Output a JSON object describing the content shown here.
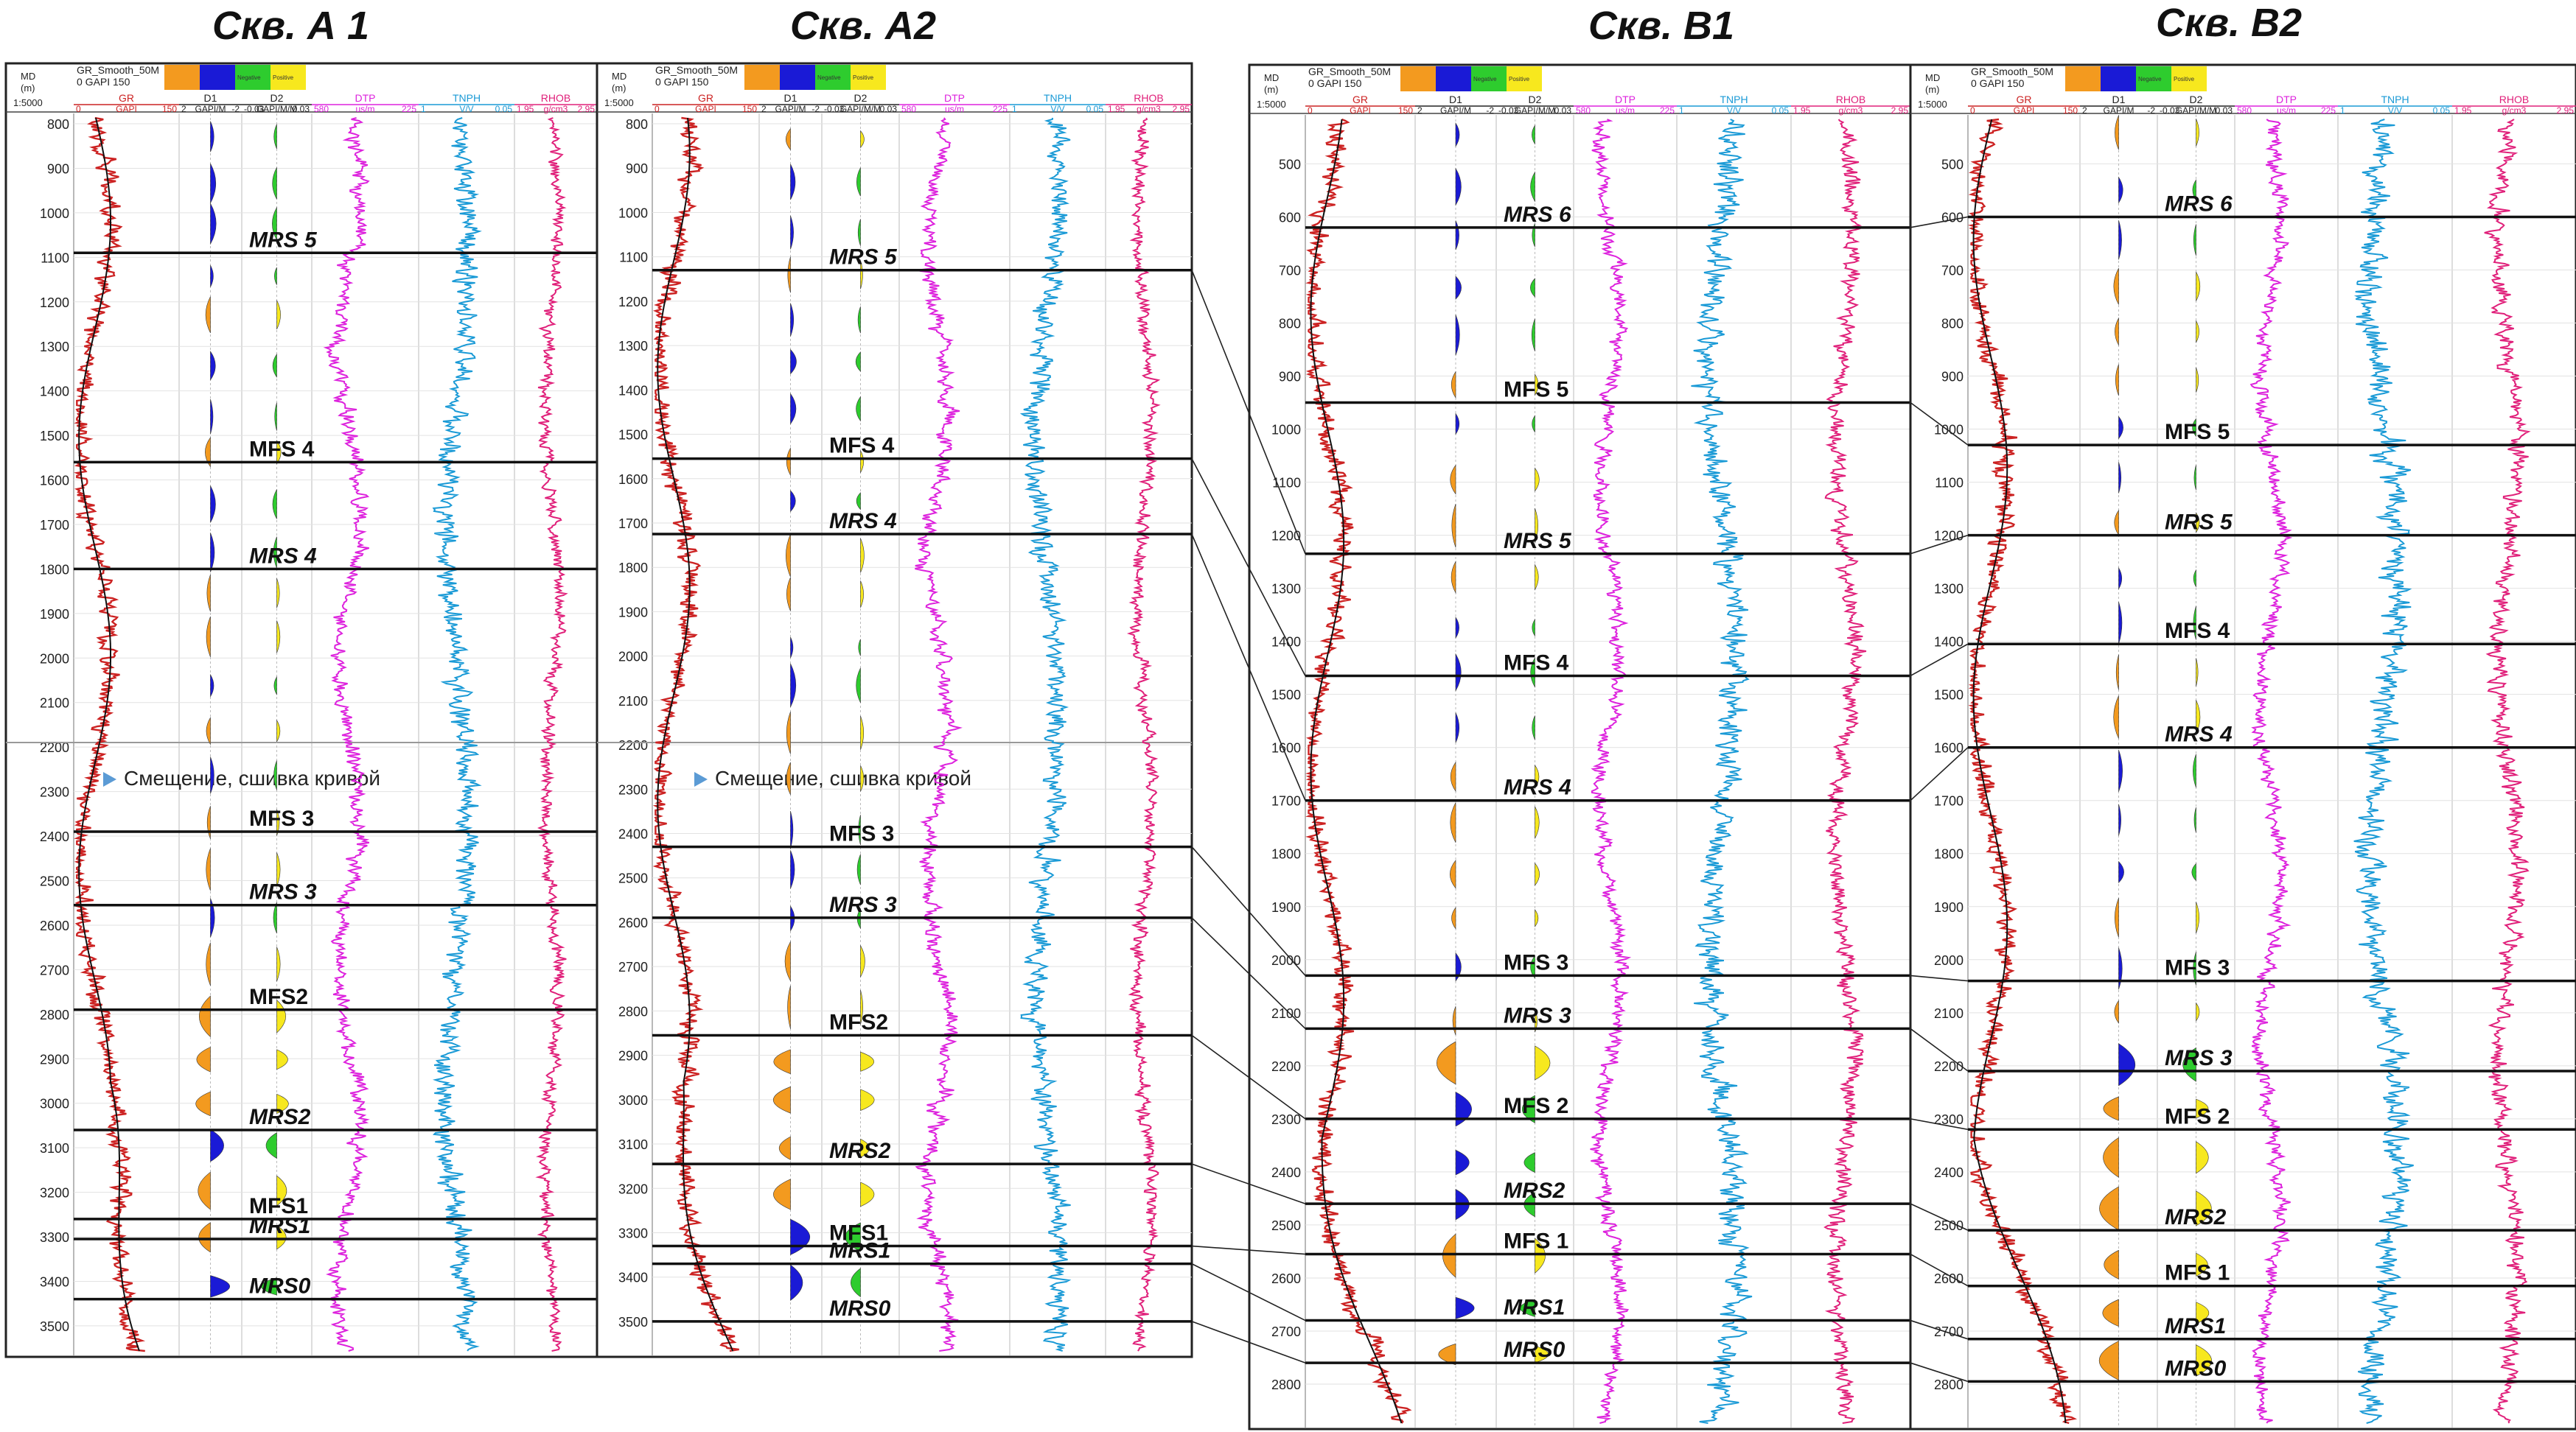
{
  "wells": [
    {
      "id": "A1",
      "title": "Скв. А 1",
      "depth_ticks": [
        800,
        900,
        1000,
        1100,
        1200,
        1300,
        1400,
        1500,
        1600,
        1700,
        1800,
        1900,
        2000,
        2100,
        2200,
        2300,
        2400,
        2500,
        2600,
        2700,
        2800,
        2900,
        3000,
        3100,
        3200,
        3300,
        3400,
        3500
      ],
      "surfaces": [
        {
          "label": "MRS 5",
          "depth": 1090
        },
        {
          "label": "MFS 4",
          "depth": 1560
        },
        {
          "label": "MRS 4",
          "depth": 1800
        },
        {
          "label": "MFS 3",
          "depth": 2390
        },
        {
          "label": "MRS 3",
          "depth": 2555
        },
        {
          "label": "MFS2",
          "depth": 2790
        },
        {
          "label": "MRS2",
          "depth": 3060
        },
        {
          "label": "MFS1",
          "depth": 3260
        },
        {
          "label": "MRS1",
          "depth": 3305
        },
        {
          "label": "MRS0",
          "depth": 3440
        }
      ],
      "splice_note": "Смещение, сшивка кривой",
      "splice_depth": 2200
    },
    {
      "id": "A2",
      "title": "Скв. А2",
      "depth_ticks": [
        800,
        900,
        1000,
        1100,
        1200,
        1300,
        1400,
        1500,
        1600,
        1700,
        1800,
        1900,
        2000,
        2100,
        2200,
        2300,
        2400,
        2500,
        2600,
        2700,
        2800,
        2900,
        3000,
        3100,
        3200,
        3300,
        3400,
        3500
      ],
      "surfaces": [
        {
          "label": "MRS 5",
          "depth": 1130
        },
        {
          "label": "MFS 4",
          "depth": 1555
        },
        {
          "label": "MRS 4",
          "depth": 1725
        },
        {
          "label": "MFS 3",
          "depth": 2430
        },
        {
          "label": "MRS 3",
          "depth": 2590
        },
        {
          "label": "MFS2",
          "depth": 2855
        },
        {
          "label": "MRS2",
          "depth": 3145
        },
        {
          "label": "MFS1",
          "depth": 3330
        },
        {
          "label": "MRS1",
          "depth": 3370
        },
        {
          "label": "MRS0",
          "depth": 3500
        }
      ],
      "splice_note": "Смещение, сшивка кривой",
      "splice_depth": 2200
    },
    {
      "id": "B1",
      "title": "Скв. В1",
      "depth_ticks": [
        500,
        600,
        700,
        800,
        900,
        1000,
        1100,
        1200,
        1300,
        1400,
        1500,
        1600,
        1700,
        1800,
        1900,
        2000,
        2100,
        2200,
        2300,
        2400,
        2500,
        2600,
        2700,
        2800
      ],
      "surfaces": [
        {
          "label": "MRS 6",
          "depth": 620
        },
        {
          "label": "MFS 5",
          "depth": 950
        },
        {
          "label": "MRS 5",
          "depth": 1235
        },
        {
          "label": "MFS 4",
          "depth": 1465
        },
        {
          "label": "MRS 4",
          "depth": 1700
        },
        {
          "label": "MFS 3",
          "depth": 2030
        },
        {
          "label": "MRS 3",
          "depth": 2130
        },
        {
          "label": "MFS 2",
          "depth": 2300
        },
        {
          "label": "MRS2",
          "depth": 2460
        },
        {
          "label": "MFS 1",
          "depth": 2555
        },
        {
          "label": "MRS1",
          "depth": 2680
        },
        {
          "label": "MRS0",
          "depth": 2760
        }
      ]
    },
    {
      "id": "B2",
      "title": "Скв. В2",
      "depth_ticks": [
        500,
        600,
        700,
        800,
        900,
        1000,
        1100,
        1200,
        1300,
        1400,
        1500,
        1600,
        1700,
        1800,
        1900,
        2000,
        2100,
        2200,
        2300,
        2400,
        2500,
        2600,
        2700,
        2800
      ],
      "surfaces": [
        {
          "label": "MRS 6",
          "depth": 600
        },
        {
          "label": "MFS 5",
          "depth": 1030
        },
        {
          "label": "MRS 5",
          "depth": 1200
        },
        {
          "label": "MFS 4",
          "depth": 1405
        },
        {
          "label": "MRS 4",
          "depth": 1600
        },
        {
          "label": "MFS 3",
          "depth": 2040
        },
        {
          "label": "MRS 3",
          "depth": 2210
        },
        {
          "label": "MFS 2",
          "depth": 2320
        },
        {
          "label": "MRS2",
          "depth": 2510
        },
        {
          "label": "MFS 1",
          "depth": 2615
        },
        {
          "label": "MRS1",
          "depth": 2715
        },
        {
          "label": "MRS0",
          "depth": 2795
        }
      ]
    }
  ],
  "header": {
    "md_label": "MD",
    "md_unit": "(m)",
    "scale": "1:5000",
    "gr_smooth_a": "GR_Smooth_50M",
    "gr_smooth_b": "GR_Smooth_50M",
    "gapi_scale": "0  GAPI  150",
    "tracks": [
      {
        "name": "GR",
        "scale_left": "0",
        "unit": "GAPI",
        "scale_right": "150",
        "color": "#cc2222"
      },
      {
        "name": "D1",
        "scale_left": "2",
        "unit": "GAPI/M",
        "scale_right": "-2",
        "color": "#222222"
      },
      {
        "name": "D2",
        "scale_left": "-0.03",
        "unit": "GAPI/M/M",
        "scale_right": "0.03",
        "color": "#222222"
      },
      {
        "name": "DTP",
        "scale_left": "580",
        "unit": "us/m",
        "scale_right": "225",
        "color": "#dd22dd"
      },
      {
        "name": "TNPH",
        "scale_left": "1",
        "unit": "V/V",
        "scale_right": "0.05",
        "color": "#1a9ad6"
      },
      {
        "name": "RHOB",
        "scale_left": "1.95",
        "unit": "g/cm3",
        "scale_right": "2.95",
        "color": "#e0207a"
      }
    ],
    "swatches": [
      {
        "color": "#f39a1f",
        "text": ""
      },
      {
        "color": "#1a1ad6",
        "text": ""
      },
      {
        "color": "#2ecc2e",
        "text": "Negative"
      },
      {
        "color": "#f7e81e",
        "text": "Positive"
      }
    ]
  },
  "colors": {
    "gr": "#cc2222",
    "dtp": "#dd22dd",
    "tnph": "#1a9ad6",
    "rhob": "#e0207a",
    "orange": "#f39a1f",
    "blue": "#1a1ad6",
    "green": "#2ecc2e",
    "yellow": "#f7e81e"
  }
}
